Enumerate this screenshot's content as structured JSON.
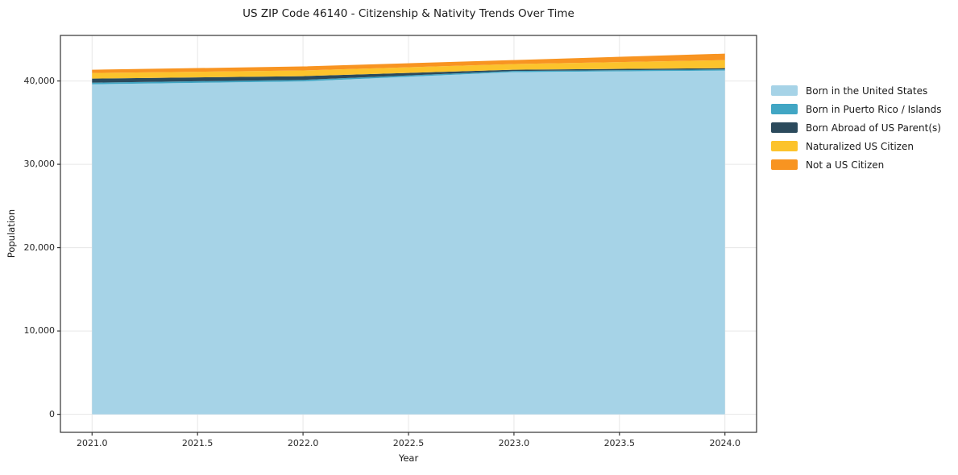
{
  "figure": {
    "background": "#ffffff"
  },
  "chart_data": {
    "type": "area",
    "stacked": true,
    "title": "US ZIP Code 46140 - Citizenship & Nativity Trends Over Time",
    "xlabel": "Year",
    "ylabel": "Population",
    "x": [
      2021,
      2022,
      2023,
      2024
    ],
    "series": [
      {
        "name": "Born in the United States",
        "color": "#A6D3E7",
        "values": [
          39600,
          39950,
          41060,
          41250
        ]
      },
      {
        "name": "Born in Puerto Rico / Islands",
        "color": "#41A6C4",
        "values": [
          200,
          180,
          140,
          140
        ]
      },
      {
        "name": "Born Abroad of US Parent(s)",
        "color": "#2B4A5C",
        "values": [
          480,
          450,
          150,
          150
        ]
      },
      {
        "name": "Naturalized US Citizen",
        "color": "#FCC32C",
        "values": [
          680,
          680,
          680,
          960
        ]
      },
      {
        "name": "Not a US Citizen",
        "color": "#F89421",
        "values": [
          390,
          480,
          480,
          780
        ]
      }
    ],
    "totals": [
      41350,
      41740,
      42510,
      43280
    ],
    "x_ticks": {
      "values": [
        2021.0,
        2021.5,
        2022.0,
        2022.5,
        2023.0,
        2023.5,
        2024.0
      ],
      "labels": [
        "2021.0",
        "2021.5",
        "2022.0",
        "2022.5",
        "2023.0",
        "2023.5",
        "2024.0"
      ]
    },
    "y_ticks": {
      "values": [
        0,
        10000,
        20000,
        30000,
        40000
      ],
      "labels": [
        "0",
        "10,000",
        "20,000",
        "30,000",
        "40,000"
      ]
    },
    "xlim": [
      2020.85,
      2024.15
    ],
    "ylim": [
      -2165,
      45465
    ],
    "grid": true,
    "legend_position": "right-outside"
  },
  "style": {
    "grid_color": "#e7e7e7",
    "spine_color": "#333333",
    "tick_color": "#333333",
    "text_color": "#262626",
    "background": "#ffffff"
  }
}
